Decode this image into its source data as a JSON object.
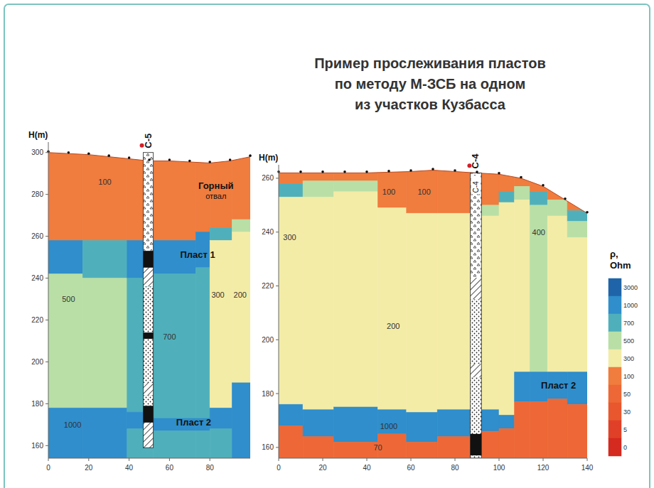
{
  "title_lines": [
    "Пример прослеживания пластов",
    "по методу М-ЗСБ на одном",
    "из участков Кузбасса"
  ],
  "colorbar": {
    "label_lines": [
      "ρ,",
      "Ohm"
    ],
    "ticks": [
      3000,
      1000,
      700,
      500,
      300,
      100,
      50,
      30,
      5,
      0
    ],
    "colors": [
      "#1f64a8",
      "#2f8ecb",
      "#4fb0bb",
      "#b9dfa6",
      "#f3eca7",
      "#f07c3e",
      "#ed6836",
      "#e9572f",
      "#e04028",
      "#d42a1f"
    ]
  },
  "chart_data": [
    {
      "type": "section",
      "y_label": "H(m)",
      "xlim": [
        0,
        100
      ],
      "ylim": [
        154,
        305
      ],
      "xticks": [
        0,
        20,
        40,
        60,
        80
      ],
      "yticks": [
        160,
        180,
        200,
        220,
        240,
        260,
        280,
        300
      ],
      "surface": {
        "x": [
          0,
          20,
          40,
          50,
          60,
          80,
          90,
          100
        ],
        "h": [
          300,
          299,
          297,
          296,
          296,
          295,
          296,
          298
        ]
      },
      "columns": [
        {
          "x": [
            0,
            17
          ],
          "layers": [
            {
              "rho": 100,
              "bottom": 258
            },
            {
              "rho": 1000,
              "bottom": 242
            },
            {
              "rho": 500,
              "bottom": 178
            },
            {
              "rho": 1000,
              "bottom": 154
            }
          ]
        },
        {
          "x": [
            17,
            39
          ],
          "layers": [
            {
              "rho": 100,
              "bottom": 258
            },
            {
              "rho": 700,
              "bottom": 240
            },
            {
              "rho": 500,
              "bottom": 178
            },
            {
              "rho": 1000,
              "bottom": 154
            }
          ]
        },
        {
          "x": [
            39,
            52
          ],
          "layers": [
            {
              "rho": 100,
              "bottom": 258
            },
            {
              "rho": 1000,
              "bottom": 240
            },
            {
              "rho": 700,
              "bottom": 176
            },
            {
              "rho": 1000,
              "bottom": 168
            },
            {
              "rho": 700,
              "bottom": 154
            }
          ]
        },
        {
          "x": [
            52,
            73
          ],
          "layers": [
            {
              "rho": 100,
              "bottom": 258
            },
            {
              "rho": 1000,
              "bottom": 242
            },
            {
              "rho": 700,
              "bottom": 173
            },
            {
              "rho": 1000,
              "bottom": 167
            },
            {
              "rho": 700,
              "bottom": 154
            }
          ]
        },
        {
          "x": [
            73,
            80
          ],
          "layers": [
            {
              "rho": 100,
              "bottom": 262
            },
            {
              "rho": 1000,
              "bottom": 245
            },
            {
              "rho": 700,
              "bottom": 173
            },
            {
              "rho": 1000,
              "bottom": 167
            },
            {
              "rho": 700,
              "bottom": 154
            }
          ]
        },
        {
          "x": [
            80,
            91
          ],
          "layers": [
            {
              "rho": 100,
              "bottom": 264
            },
            {
              "rho": 700,
              "bottom": 258
            },
            {
              "rho": 300,
              "bottom": 178
            },
            {
              "rho": 1000,
              "bottom": 168
            },
            {
              "rho": 700,
              "bottom": 154
            }
          ]
        },
        {
          "x": [
            91,
            100
          ],
          "layers": [
            {
              "rho": 100,
              "bottom": 268
            },
            {
              "rho": 500,
              "bottom": 262
            },
            {
              "rho": 200,
              "bottom": 190
            },
            {
              "rho": 1000,
              "bottom": 154
            }
          ]
        }
      ],
      "wells": [
        {
          "labels": [
            "С-5"
          ],
          "x": [
            47,
            52
          ],
          "intervals": [
            {
              "from": 300,
              "to": 253,
              "type": "fill"
            },
            {
              "from": 253,
              "to": 245,
              "type": "coal"
            },
            {
              "from": 245,
              "to": 236,
              "type": "shale"
            },
            {
              "from": 236,
              "to": 214,
              "type": "sand"
            },
            {
              "from": 214,
              "to": 211,
              "type": "coal"
            },
            {
              "from": 211,
              "to": 190,
              "type": "sand"
            },
            {
              "from": 190,
              "to": 184,
              "type": "shale"
            },
            {
              "from": 184,
              "to": 179,
              "type": "sand"
            },
            {
              "from": 179,
              "to": 171,
              "type": "coal"
            },
            {
              "from": 171,
              "to": 159,
              "type": "shale"
            }
          ]
        }
      ],
      "annotations": [
        {
          "lines": [
            "Горный",
            "отвал"
          ],
          "x": 83,
          "h": 284
        },
        {
          "lines": [
            "Пласт 1"
          ],
          "x": 74,
          "h": 251
        },
        {
          "lines": [
            "Пласт 2"
          ],
          "x": 72,
          "h": 171
        }
      ],
      "cell_labels": [
        {
          "value": 100,
          "x": 28,
          "h": 286
        },
        {
          "value": 500,
          "x": 10,
          "h": 230
        },
        {
          "value": 700,
          "x": 60,
          "h": 212
        },
        {
          "value": 300,
          "x": 84,
          "h": 232
        },
        {
          "value": 200,
          "x": 95,
          "h": 232
        },
        {
          "value": 1000,
          "x": 12,
          "h": 170
        }
      ]
    },
    {
      "type": "section",
      "y_label": "H(m)",
      "xlim": [
        0,
        140
      ],
      "ylim": [
        156,
        265
      ],
      "xticks": [
        0,
        20,
        40,
        60,
        80,
        100,
        120,
        140
      ],
      "yticks": [
        160,
        180,
        200,
        220,
        240,
        260
      ],
      "surface": {
        "x": [
          0,
          20,
          40,
          60,
          70,
          80,
          89,
          100,
          110,
          120,
          130,
          140
        ],
        "h": [
          262,
          262,
          262,
          262.5,
          263,
          262.5,
          262,
          261.5,
          260,
          257,
          252,
          247
        ]
      },
      "columns": [
        {
          "x": [
            0,
            11
          ],
          "layers": [
            {
              "rho": 100,
              "bottom": 258
            },
            {
              "rho": 700,
              "bottom": 253
            },
            {
              "rho": 300,
              "bottom": 176
            },
            {
              "rho": 1000,
              "bottom": 168
            },
            {
              "rho": 70,
              "bottom": 156
            }
          ]
        },
        {
          "x": [
            11,
            25
          ],
          "layers": [
            {
              "rho": 100,
              "bottom": 259
            },
            {
              "rho": 500,
              "bottom": 253
            },
            {
              "rho": 300,
              "bottom": 174
            },
            {
              "rho": 1000,
              "bottom": 164
            },
            {
              "rho": 70,
              "bottom": 156
            }
          ]
        },
        {
          "x": [
            25,
            45
          ],
          "layers": [
            {
              "rho": 100,
              "bottom": 259
            },
            {
              "rho": 500,
              "bottom": 255
            },
            {
              "rho": 200,
              "bottom": 175
            },
            {
              "rho": 1000,
              "bottom": 162
            },
            {
              "rho": 70,
              "bottom": 156
            }
          ]
        },
        {
          "x": [
            45,
            58
          ],
          "layers": [
            {
              "rho": 100,
              "bottom": 249
            },
            {
              "rho": 200,
              "bottom": 174
            },
            {
              "rho": 1000,
              "bottom": 165
            },
            {
              "rho": 70,
              "bottom": 156
            }
          ]
        },
        {
          "x": [
            58,
            72
          ],
          "layers": [
            {
              "rho": 100,
              "bottom": 247
            },
            {
              "rho": 200,
              "bottom": 173
            },
            {
              "rho": 1000,
              "bottom": 162
            },
            {
              "rho": 70,
              "bottom": 156
            }
          ]
        },
        {
          "x": [
            72,
            89
          ],
          "layers": [
            {
              "rho": 100,
              "bottom": 247
            },
            {
              "rho": 200,
              "bottom": 174
            },
            {
              "rho": 1000,
              "bottom": 164
            },
            {
              "rho": 70,
              "bottom": 156
            }
          ]
        },
        {
          "x": [
            89,
            100
          ],
          "layers": [
            {
              "rho": 100,
              "bottom": 250
            },
            {
              "rho": 500,
              "bottom": 246
            },
            {
              "rho": 300,
              "bottom": 174
            },
            {
              "rho": 1000,
              "bottom": 166
            },
            {
              "rho": 70,
              "bottom": 156
            }
          ]
        },
        {
          "x": [
            100,
            107
          ],
          "layers": [
            {
              "rho": 100,
              "bottom": 255
            },
            {
              "rho": 700,
              "bottom": 251
            },
            {
              "rho": 300,
              "bottom": 172
            },
            {
              "rho": 1000,
              "bottom": 167
            },
            {
              "rho": 70,
              "bottom": 156
            }
          ]
        },
        {
          "x": [
            107,
            114
          ],
          "layers": [
            {
              "rho": 100,
              "bottom": 257
            },
            {
              "rho": 500,
              "bottom": 252
            },
            {
              "rho": 300,
              "bottom": 188
            },
            {
              "rho": 1000,
              "bottom": 177
            },
            {
              "rho": 70,
              "bottom": 156
            }
          ]
        },
        {
          "x": [
            114,
            122
          ],
          "layers": [
            {
              "rho": 100,
              "bottom": 255
            },
            {
              "rho": 700,
              "bottom": 250
            },
            {
              "rho": 400,
              "bottom": 188
            },
            {
              "rho": 1000,
              "bottom": 177
            },
            {
              "rho": 70,
              "bottom": 156
            }
          ]
        },
        {
          "x": [
            122,
            131
          ],
          "layers": [
            {
              "rho": 100,
              "bottom": 252
            },
            {
              "rho": 500,
              "bottom": 246
            },
            {
              "rho": 300,
              "bottom": 188
            },
            {
              "rho": 1000,
              "bottom": 178
            },
            {
              "rho": 70,
              "bottom": 156
            }
          ]
        },
        {
          "x": [
            131,
            140
          ],
          "layers": [
            {
              "rho": 100,
              "bottom": 248
            },
            {
              "rho": 700,
              "bottom": 244
            },
            {
              "rho": 500,
              "bottom": 238
            },
            {
              "rho": 300,
              "bottom": 188
            },
            {
              "rho": 1000,
              "bottom": 176
            },
            {
              "rho": 70,
              "bottom": 156
            }
          ]
        }
      ],
      "wells": [
        {
          "labels": [
            "С-4",
            "С-4"
          ],
          "x": [
            87,
            92
          ],
          "intervals": [
            {
              "from": 262,
              "to": 223,
              "type": "fill"
            },
            {
              "from": 223,
              "to": 215,
              "type": "shale"
            },
            {
              "from": 215,
              "to": 191,
              "type": "sand"
            },
            {
              "from": 191,
              "to": 186,
              "type": "shale"
            },
            {
              "from": 186,
              "to": 165,
              "type": "sand"
            },
            {
              "from": 165,
              "to": 157,
              "type": "coal"
            },
            {
              "from": 157,
              "to": 156,
              "type": "sand"
            }
          ]
        }
      ],
      "annotations": [
        {
          "lines": [
            "Пласт 2"
          ],
          "x": 127,
          "h": 183
        }
      ],
      "cell_labels": [
        {
          "value": 300,
          "x": 5,
          "h": 238
        },
        {
          "value": 100,
          "x": 50,
          "h": 255
        },
        {
          "value": 100,
          "x": 66,
          "h": 255
        },
        {
          "value": 200,
          "x": 52,
          "h": 205
        },
        {
          "value": 400,
          "x": 118,
          "h": 240
        },
        {
          "value": 1000,
          "x": 50,
          "h": 168
        },
        {
          "value": 70,
          "x": 45,
          "h": 160
        }
      ]
    }
  ]
}
